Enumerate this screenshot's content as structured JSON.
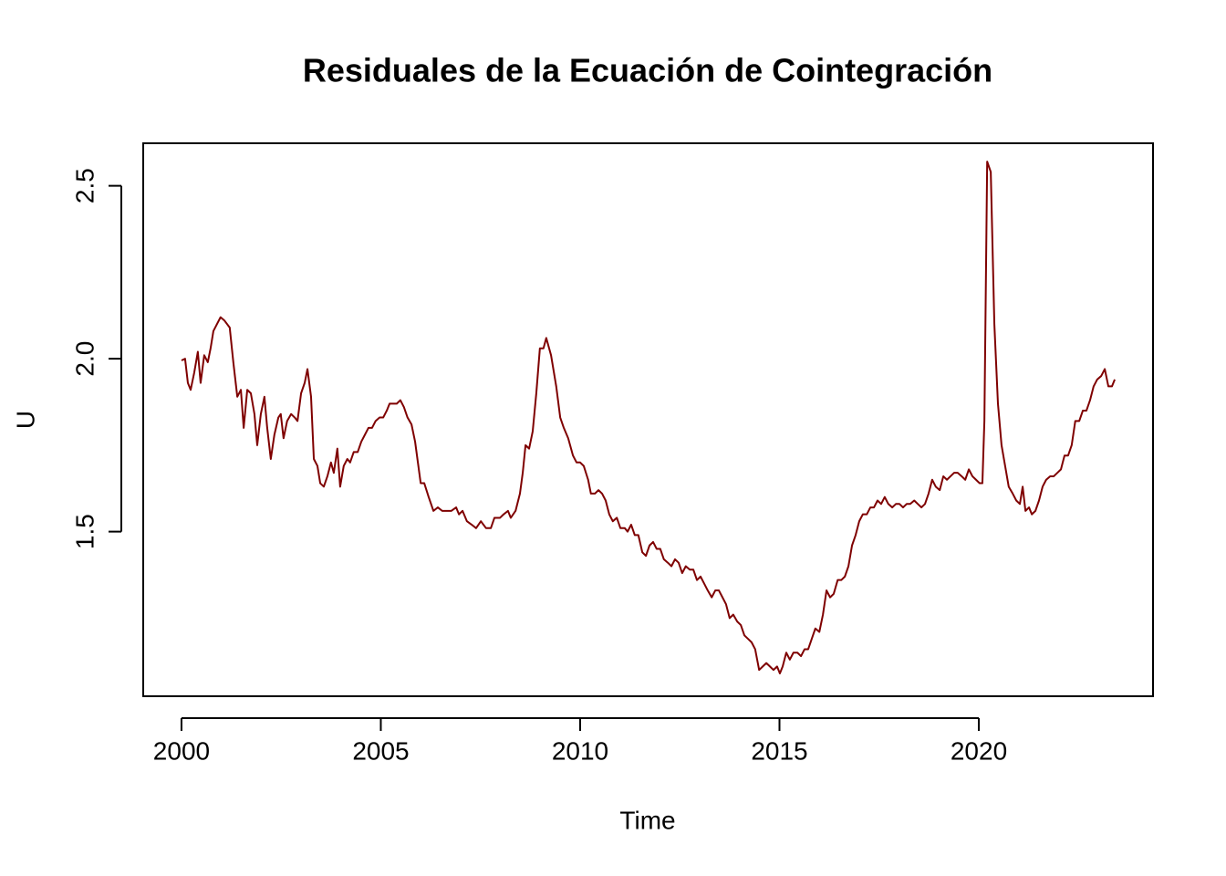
{
  "chart_data": {
    "type": "line",
    "title": "Residuales de la Ecuación de Cointegración",
    "x_label": "Time",
    "y_label": "U",
    "xlim": [
      1999.04,
      2024.37
    ],
    "ylim": [
      1.024,
      2.623
    ],
    "xticks": [
      2000,
      2005,
      2010,
      2015,
      2020
    ],
    "yticks": [
      {
        "value": 1.5,
        "label": "1.5"
      },
      {
        "value": 2.0,
        "label": "2.0"
      },
      {
        "value": 2.5,
        "label": "2.5"
      }
    ],
    "grid": false,
    "series": [
      {
        "color": "#7f0000",
        "x": [
          2000,
          2000.09,
          2000.16,
          2000.23,
          2000.32,
          2000.41,
          2000.48,
          2000.57,
          2000.66,
          2000.73,
          2000.8,
          2000.89,
          2000.98,
          2001.08,
          2001.21,
          2001.3,
          2001.4,
          2001.49,
          2001.56,
          2001.65,
          2001.74,
          2001.83,
          2001.9,
          2001.99,
          2002.08,
          2002.15,
          2002.24,
          2002.33,
          2002.43,
          2002.49,
          2002.56,
          2002.65,
          2002.75,
          2002.84,
          2002.91,
          2003,
          2003.09,
          2003.16,
          2003.25,
          2003.32,
          2003.41,
          2003.48,
          2003.57,
          2003.66,
          2003.75,
          2003.82,
          2003.91,
          2003.98,
          2004.07,
          2004.16,
          2004.23,
          2004.32,
          2004.42,
          2004.51,
          2004.6,
          2004.69,
          2004.78,
          2004.87,
          2004.97,
          2005.06,
          2005.15,
          2005.22,
          2005.31,
          2005.4,
          2005.49,
          2005.58,
          2005.67,
          2005.77,
          2005.86,
          2005.93,
          2006,
          2006.09,
          2006.2,
          2006.32,
          2006.43,
          2006.54,
          2006.77,
          2006.89,
          2006.96,
          2007.05,
          2007.16,
          2007.28,
          2007.39,
          2007.51,
          2007.64,
          2007.76,
          2007.85,
          2007.99,
          2008.08,
          2008.19,
          2008.26,
          2008.38,
          2008.49,
          2008.56,
          2008.63,
          2008.72,
          2008.81,
          2008.9,
          2008.99,
          2009.08,
          2009.15,
          2009.27,
          2009.4,
          2009.5,
          2009.59,
          2009.7,
          2009.82,
          2009.91,
          2010,
          2010.09,
          2010.2,
          2010.27,
          2010.37,
          2010.46,
          2010.55,
          2010.64,
          2010.73,
          2010.82,
          2010.92,
          2011.01,
          2011.12,
          2011.19,
          2011.28,
          2011.37,
          2011.46,
          2011.56,
          2011.65,
          2011.74,
          2011.83,
          2011.92,
          2012.01,
          2012.1,
          2012.2,
          2012.29,
          2012.38,
          2012.47,
          2012.56,
          2012.65,
          2012.75,
          2012.84,
          2012.93,
          2013.02,
          2013.11,
          2013.2,
          2013.3,
          2013.39,
          2013.48,
          2013.57,
          2013.66,
          2013.75,
          2013.84,
          2013.94,
          2014.03,
          2014.12,
          2014.21,
          2014.3,
          2014.39,
          2014.49,
          2014.58,
          2014.67,
          2014.76,
          2014.85,
          2014.94,
          2015.01,
          2015.08,
          2015.17,
          2015.26,
          2015.35,
          2015.45,
          2015.54,
          2015.63,
          2015.72,
          2015.81,
          2015.9,
          2016,
          2016.09,
          2016.18,
          2016.27,
          2016.36,
          2016.46,
          2016.55,
          2016.64,
          2016.73,
          2016.82,
          2016.91,
          2017,
          2017.09,
          2017.19,
          2017.28,
          2017.37,
          2017.46,
          2017.55,
          2017.64,
          2017.73,
          2017.83,
          2017.92,
          2018.01,
          2018.1,
          2018.19,
          2018.28,
          2018.38,
          2018.47,
          2018.56,
          2018.65,
          2018.74,
          2018.83,
          2018.92,
          2019.02,
          2019.11,
          2019.2,
          2019.29,
          2019.38,
          2019.47,
          2019.57,
          2019.66,
          2019.75,
          2019.84,
          2019.93,
          2020.02,
          2020.09,
          2020.14,
          2020.21,
          2020.3,
          2020.39,
          2020.48,
          2020.57,
          2020.66,
          2020.75,
          2020.85,
          2020.94,
          2021.03,
          2021.1,
          2021.17,
          2021.26,
          2021.33,
          2021.42,
          2021.51,
          2021.6,
          2021.69,
          2021.79,
          2021.88,
          2021.97,
          2022.06,
          2022.15,
          2022.24,
          2022.33,
          2022.42,
          2022.52,
          2022.61,
          2022.7,
          2022.79,
          2022.88,
          2022.97,
          2023.07,
          2023.16,
          2023.25,
          2023.34,
          2023.41
        ],
        "values": [
          1.995,
          2.0,
          1.93,
          1.91,
          1.96,
          2.02,
          1.93,
          2.01,
          1.99,
          2.03,
          2.08,
          2.1,
          2.12,
          2.11,
          2.09,
          1.99,
          1.89,
          1.91,
          1.8,
          1.91,
          1.9,
          1.84,
          1.75,
          1.84,
          1.89,
          1.8,
          1.71,
          1.78,
          1.83,
          1.84,
          1.77,
          1.82,
          1.84,
          1.83,
          1.82,
          1.9,
          1.93,
          1.97,
          1.89,
          1.71,
          1.69,
          1.64,
          1.63,
          1.66,
          1.7,
          1.67,
          1.74,
          1.63,
          1.69,
          1.71,
          1.7,
          1.73,
          1.73,
          1.76,
          1.78,
          1.8,
          1.8,
          1.82,
          1.83,
          1.83,
          1.85,
          1.87,
          1.87,
          1.87,
          1.88,
          1.86,
          1.83,
          1.81,
          1.76,
          1.7,
          1.64,
          1.64,
          1.6,
          1.56,
          1.57,
          1.56,
          1.56,
          1.57,
          1.55,
          1.56,
          1.53,
          1.52,
          1.51,
          1.53,
          1.51,
          1.51,
          1.54,
          1.54,
          1.55,
          1.56,
          1.54,
          1.56,
          1.61,
          1.67,
          1.75,
          1.74,
          1.79,
          1.9,
          2.03,
          2.03,
          2.06,
          2.01,
          1.92,
          1.83,
          1.8,
          1.77,
          1.72,
          1.7,
          1.7,
          1.69,
          1.65,
          1.61,
          1.61,
          1.62,
          1.61,
          1.59,
          1.55,
          1.53,
          1.54,
          1.51,
          1.51,
          1.5,
          1.52,
          1.49,
          1.49,
          1.44,
          1.43,
          1.46,
          1.47,
          1.45,
          1.45,
          1.42,
          1.41,
          1.4,
          1.42,
          1.41,
          1.38,
          1.4,
          1.39,
          1.39,
          1.36,
          1.37,
          1.35,
          1.33,
          1.31,
          1.33,
          1.33,
          1.31,
          1.29,
          1.25,
          1.26,
          1.24,
          1.23,
          1.2,
          1.19,
          1.18,
          1.16,
          1.1,
          1.11,
          1.12,
          1.11,
          1.1,
          1.11,
          1.09,
          1.11,
          1.15,
          1.13,
          1.15,
          1.15,
          1.14,
          1.16,
          1.16,
          1.19,
          1.22,
          1.21,
          1.26,
          1.33,
          1.31,
          1.32,
          1.36,
          1.36,
          1.37,
          1.4,
          1.46,
          1.49,
          1.53,
          1.55,
          1.55,
          1.57,
          1.57,
          1.59,
          1.58,
          1.6,
          1.58,
          1.57,
          1.58,
          1.58,
          1.57,
          1.58,
          1.58,
          1.59,
          1.58,
          1.57,
          1.58,
          1.61,
          1.65,
          1.63,
          1.62,
          1.66,
          1.65,
          1.66,
          1.67,
          1.67,
          1.66,
          1.65,
          1.68,
          1.66,
          1.65,
          1.64,
          1.64,
          1.82,
          2.57,
          2.54,
          2.1,
          1.87,
          1.75,
          1.69,
          1.63,
          1.61,
          1.59,
          1.58,
          1.63,
          1.56,
          1.57,
          1.55,
          1.56,
          1.59,
          1.63,
          1.65,
          1.66,
          1.66,
          1.67,
          1.68,
          1.72,
          1.72,
          1.75,
          1.82,
          1.82,
          1.85,
          1.85,
          1.88,
          1.92,
          1.94,
          1.95,
          1.97,
          1.92,
          1.92,
          1.94
        ]
      }
    ]
  }
}
